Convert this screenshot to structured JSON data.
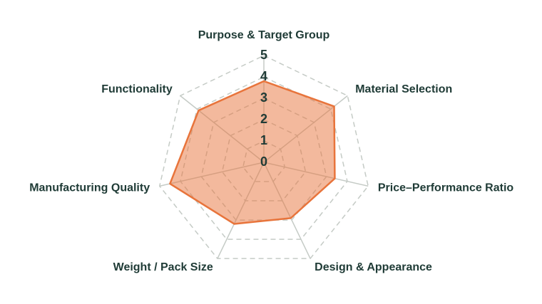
{
  "chart_data": {
    "type": "radar",
    "categories": [
      "Purpose & Target Group",
      "Material Selection",
      "Price–Performance Ratio",
      "Design & Appearance",
      "Weight / Pack Size",
      "Manufacturing Quality",
      "Functionality"
    ],
    "values": [
      3.8,
      4.2,
      3.4,
      2.9,
      3.2,
      4.5,
      3.9
    ],
    "color": "#e8743b",
    "ylim": [
      0,
      5
    ],
    "yticks": [
      0,
      1,
      2,
      3,
      4,
      5
    ],
    "grid": true
  }
}
